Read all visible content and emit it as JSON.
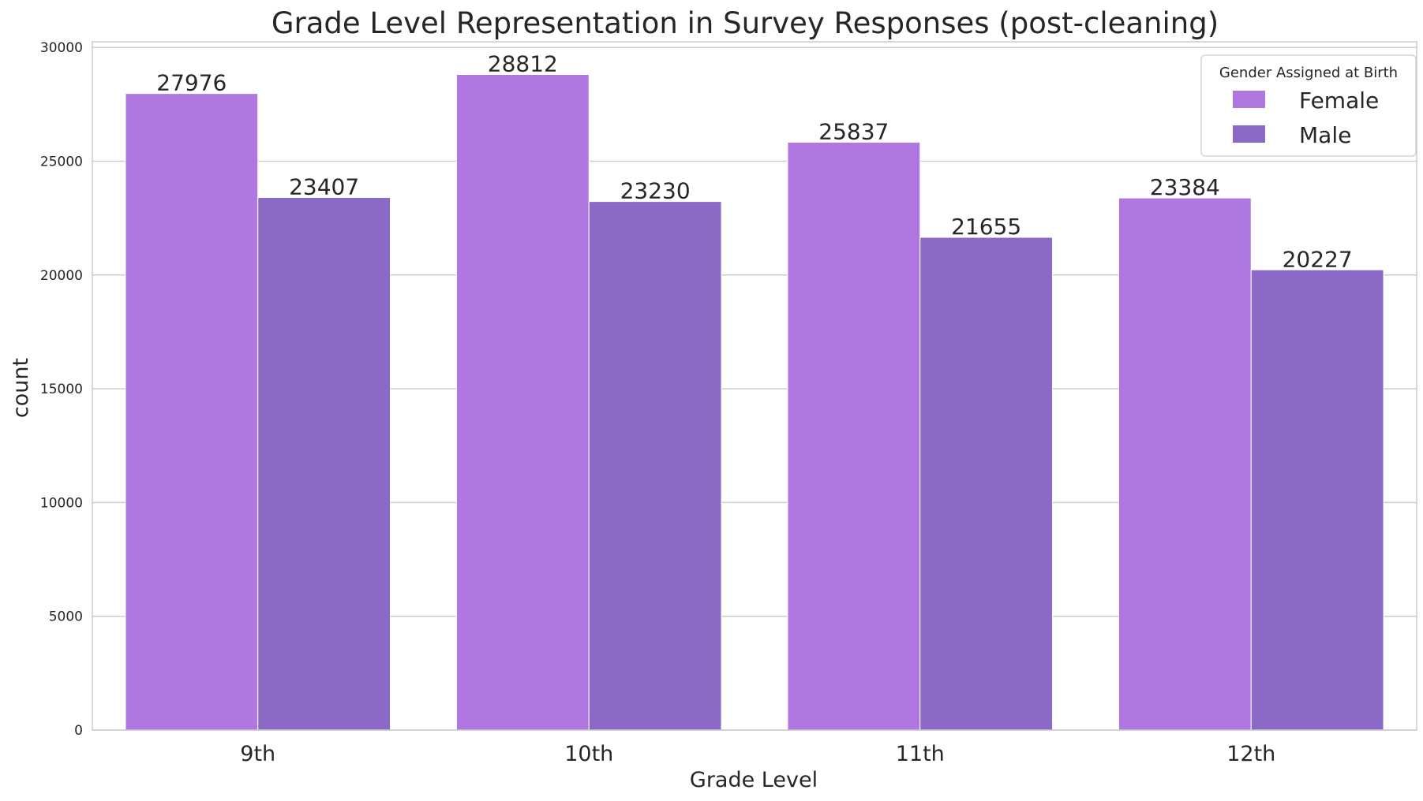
{
  "chart_data": {
    "type": "bar",
    "title": "Grade Level Representation in Survey Responses (post-cleaning)",
    "xlabel": "Grade Level",
    "ylabel": "count",
    "categories": [
      "9th",
      "10th",
      "11th",
      "12th"
    ],
    "series": [
      {
        "name": "Female",
        "color": "#b077e0",
        "values": [
          27976,
          28812,
          25837,
          23384
        ]
      },
      {
        "name": "Male",
        "color": "#8b69c6",
        "values": [
          23407,
          23230,
          21655,
          20227
        ]
      }
    ],
    "ylim": [
      0,
      30250
    ],
    "yticks": [
      0,
      5000,
      10000,
      15000,
      20000,
      25000,
      30000
    ],
    "grid": true,
    "legend": {
      "title": "Gender Assigned at Birth",
      "position": "top-right"
    }
  }
}
